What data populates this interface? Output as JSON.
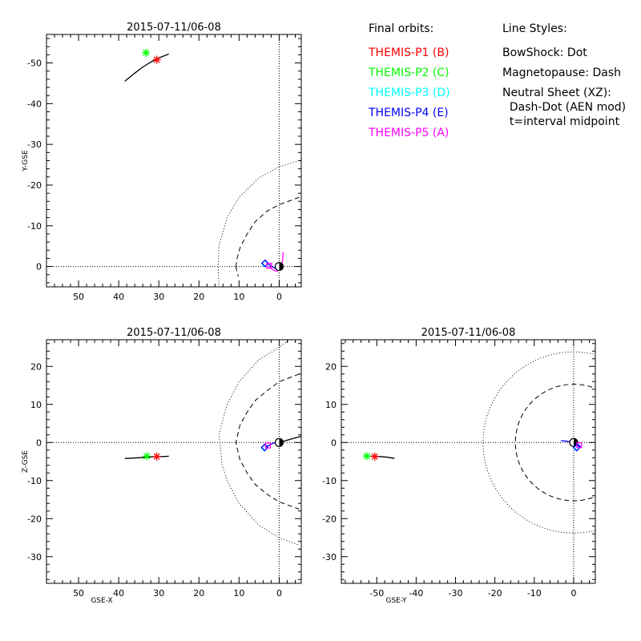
{
  "legend": {
    "orbits_header": "Final orbits:",
    "styles_header": "Line Styles:",
    "orbits": [
      {
        "label": "THEMIS-P1  (B)",
        "color": "#ff0000"
      },
      {
        "label": "THEMIS-P2  (C)",
        "color": "#00ff00"
      },
      {
        "label": "THEMIS-P3  (D)",
        "color": "#00ffff"
      },
      {
        "label": "THEMIS-P4  (E)",
        "color": "#0000ff"
      },
      {
        "label": "THEMIS-P5  (A)",
        "color": "#ff00ff"
      }
    ],
    "styles": [
      "BowShock: Dot",
      "Magnetopause: Dash",
      "Neutral Sheet (XZ):",
      "  Dash-Dot (AEN mod)",
      "  t=interval midpoint"
    ]
  },
  "chart_data": [
    {
      "type": "line",
      "title": "2015-07-11/06-08",
      "xlabel": "",
      "ylabel": "Y-GSE",
      "x_reversed": true,
      "y_reversed": true,
      "xlim": [
        58,
        -5.5
      ],
      "ylim": [
        5,
        -57
      ],
      "xticks": [
        50,
        40,
        30,
        20,
        10,
        0
      ],
      "yticks": [
        0,
        -10,
        -20,
        -30,
        -40,
        -50
      ],
      "zero_lines": true,
      "boundaries": {
        "bowshock": {
          "style": "dot",
          "x": [
            -5,
            0,
            5,
            10,
            13,
            15,
            15.2,
            15,
            13,
            10,
            5,
            1,
            -3.5,
            -5
          ],
          "y": [
            -26,
            -24.5,
            -21.8,
            -17,
            -12,
            -5,
            0,
            5,
            10,
            16,
            21.8,
            25,
            27,
            28
          ]
        },
        "magnetopause": {
          "style": "dash",
          "x": [
            -5,
            0,
            3,
            6,
            8,
            9.8,
            10.5,
            10.8
          ],
          "y": [
            -17,
            -15.2,
            -13.6,
            -11,
            -8,
            -4.5,
            -2,
            0
          ],
          "x2": [
            10.8,
            10.5,
            10.2
          ],
          "y2": [
            0,
            1.5,
            2.5
          ]
        }
      },
      "series": [
        {
          "name": "THEMIS-P1 (B)",
          "color": "#ff0000",
          "marker": "asterisk",
          "pos": [
            30.5,
            -50.8
          ]
        },
        {
          "name": "THEMIS-P2 (C)",
          "color": "#00ff00",
          "marker": "asterisk",
          "pos": [
            33.2,
            -52.5
          ]
        },
        {
          "name": "THEMIS-P3 (D)",
          "color": "#00ffff",
          "marker": "diamond",
          "pos": [
            3.6,
            -0.7
          ]
        },
        {
          "name": "THEMIS-P4 (E)",
          "color": "#0000ff",
          "marker": "diamond",
          "pos": [
            3.5,
            -0.8
          ]
        },
        {
          "name": "THEMIS-P5 (A)",
          "color": "#ff00ff",
          "marker": "square",
          "pos": [
            2.5,
            -0.2
          ]
        }
      ],
      "tracks": [
        {
          "color": "#000000",
          "x": [
            38.5,
            36,
            34,
            32,
            30.5,
            29,
            27.5
          ],
          "y": [
            -45.5,
            -47.5,
            -49,
            -50.2,
            -51,
            -51.6,
            -52.2
          ]
        },
        {
          "color": "#0000ff",
          "x": [
            3.2,
            2,
            1,
            0,
            -0.6
          ],
          "y": [
            -0.8,
            -0.2,
            0.5,
            0.9,
            0.2
          ]
        },
        {
          "color": "#ff00ff",
          "x": [
            2.6,
            1.6,
            0.6,
            -0.3,
            -0.8,
            -1
          ],
          "y": [
            -0.1,
            0.8,
            1.2,
            0.3,
            -1.2,
            -3.5
          ]
        }
      ],
      "earth": {
        "x": 0,
        "y": 0
      }
    },
    {
      "type": "line",
      "title": "2015-07-11/06-08",
      "xlabel": "GSE-X",
      "ylabel": "Z-GSE",
      "x_reversed": true,
      "y_reversed": false,
      "xlim": [
        58,
        -5.5
      ],
      "ylim": [
        -37,
        27
      ],
      "xticks": [
        50,
        40,
        30,
        20,
        10,
        0
      ],
      "yticks": [
        20,
        10,
        0,
        -10,
        -20,
        -30
      ],
      "zero_lines": true,
      "boundaries": {
        "bowshock": {
          "style": "dot",
          "x": [
            -5,
            0,
            5,
            10,
            13,
            15,
            14.2,
            13,
            10,
            5,
            0,
            -5
          ],
          "y": [
            29,
            25,
            21.8,
            16,
            10,
            2,
            -6,
            -10,
            -16,
            -21.8,
            -25,
            -27
          ]
        },
        "magnetopause": {
          "style": "dash",
          "x": [
            -5,
            0,
            3,
            6,
            8,
            9.8,
            10.8,
            9.8,
            8,
            6,
            3,
            0,
            -5
          ],
          "y": [
            18,
            16,
            13.6,
            11,
            8,
            4.5,
            0,
            -4.5,
            -8,
            -11,
            -13.6,
            -15.6,
            -17.5
          ]
        }
      },
      "series": [
        {
          "name": "THEMIS-P1 (B)",
          "color": "#ff0000",
          "marker": "asterisk",
          "pos": [
            30.5,
            -3.7
          ]
        },
        {
          "name": "THEMIS-P2 (C)",
          "color": "#00ff00",
          "marker": "asterisk",
          "pos": [
            33,
            -3.6
          ]
        },
        {
          "name": "THEMIS-P3 (D)",
          "color": "#00ffff",
          "marker": "diamond",
          "pos": [
            3.7,
            -1.4
          ]
        },
        {
          "name": "THEMIS-P4 (E)",
          "color": "#0000ff",
          "marker": "diamond",
          "pos": [
            3.6,
            -1.3
          ]
        },
        {
          "name": "THEMIS-P5 (A)",
          "color": "#ff00ff",
          "marker": "square",
          "pos": [
            2.8,
            -0.8
          ]
        }
      ],
      "tracks": [
        {
          "color": "#000000",
          "x": [
            38.5,
            35,
            32,
            30.5,
            29,
            27.5
          ],
          "y": [
            -4.2,
            -4.0,
            -3.8,
            -3.7,
            -3.7,
            -3.6
          ]
        },
        {
          "color": "#0000ff",
          "x": [
            3.4,
            2.5,
            1.5,
            0.6,
            -0.3
          ],
          "y": [
            -1.2,
            -0.7,
            -0.2,
            0.1,
            0.2
          ]
        },
        {
          "color": "#000000",
          "x": [
            0,
            -2,
            -4,
            -5.5
          ],
          "y": [
            0,
            0.6,
            1.2,
            1.6
          ]
        }
      ],
      "earth": {
        "x": 0,
        "y": 0
      }
    },
    {
      "type": "line",
      "title": "2015-07-11/06-08",
      "xlabel": "GSE-Y",
      "ylabel": "",
      "x_reversed": false,
      "y_reversed": false,
      "xlim": [
        -59,
        5.5
      ],
      "ylim": [
        -37,
        27
      ],
      "xticks": [
        -50,
        -40,
        -30,
        -20,
        -10,
        0
      ],
      "yticks": [
        20,
        10,
        0,
        -10,
        -20,
        -30
      ],
      "zero_lines": true,
      "boundaries": {
        "bowshock": {
          "style": "dot-circle",
          "cx": 0,
          "cy": 0,
          "r": 23
        },
        "magnetopause": {
          "style": "dash-circle",
          "cx": 0,
          "cy": 0,
          "r": 14.8
        }
      },
      "series": [
        {
          "name": "THEMIS-P1 (B)",
          "color": "#ff0000",
          "marker": "asterisk",
          "pos": [
            -50.5,
            -3.7
          ]
        },
        {
          "name": "THEMIS-P2 (C)",
          "color": "#00ff00",
          "marker": "asterisk",
          "pos": [
            -52.5,
            -3.6
          ]
        },
        {
          "name": "THEMIS-P3 (D)",
          "color": "#00ffff",
          "marker": "diamond",
          "pos": [
            0.7,
            -1.4
          ]
        },
        {
          "name": "THEMIS-P4 (E)",
          "color": "#0000ff",
          "marker": "diamond",
          "pos": [
            0.8,
            -1.3
          ]
        },
        {
          "name": "THEMIS-P5 (A)",
          "color": "#ff00ff",
          "marker": "square",
          "pos": [
            1.4,
            -0.7
          ]
        }
      ],
      "tracks": [
        {
          "color": "#000000",
          "x": [
            -53.5,
            -51,
            -49,
            -47,
            -45.5
          ],
          "y": [
            -3.6,
            -3.6,
            -3.7,
            -3.9,
            -4.2
          ]
        },
        {
          "color": "#0000ff",
          "x": [
            -3.2,
            -1.5,
            0,
            1.2,
            1.8
          ],
          "y": [
            0.5,
            0.3,
            0,
            -0.6,
            -1.2
          ]
        }
      ],
      "earth": {
        "x": 0,
        "y": 0
      }
    }
  ]
}
